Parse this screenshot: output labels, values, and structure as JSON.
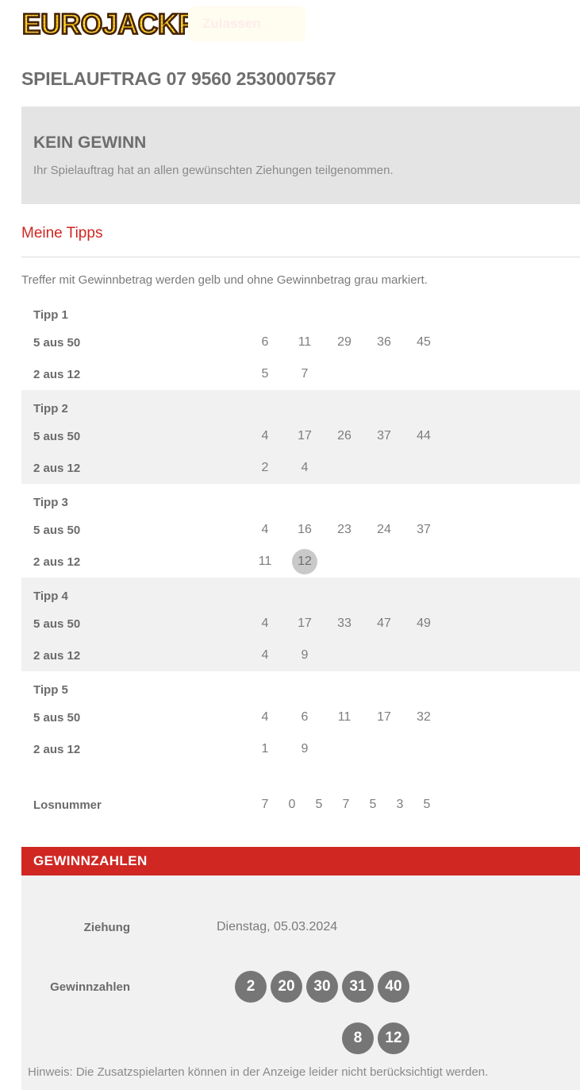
{
  "header": {
    "logo_text": "EUROJACKPOT",
    "notification_button_label": "Zulassen"
  },
  "page_title": "SPIELAUFTRAG 07 9560 2530007567",
  "result_box": {
    "title": "KEIN GEWINN",
    "message": "Ihr Spielauftrag hat an allen gewünschten Ziehungen teilgenommen."
  },
  "tips_section": {
    "heading": "Meine Tipps",
    "legend": "Treffer mit Gewinnbetrag werden gelb und ohne Gewinnbetrag grau markiert.",
    "main_row_label": "5 aus 50",
    "euro_row_label": "2 aus 12",
    "tips": [
      {
        "label": "Tipp 1",
        "main_numbers": [
          "6",
          "11",
          "29",
          "36",
          "45"
        ],
        "euro_numbers": [
          "5",
          "7"
        ],
        "euro_hit": null
      },
      {
        "label": "Tipp 2",
        "main_numbers": [
          "4",
          "17",
          "26",
          "37",
          "44"
        ],
        "euro_numbers": [
          "2",
          "4"
        ],
        "euro_hit": null
      },
      {
        "label": "Tipp 3",
        "main_numbers": [
          "4",
          "16",
          "23",
          "24",
          "37"
        ],
        "euro_numbers": [
          "11",
          "12"
        ],
        "euro_hit": "12"
      },
      {
        "label": "Tipp 4",
        "main_numbers": [
          "4",
          "17",
          "33",
          "47",
          "49"
        ],
        "euro_numbers": [
          "4",
          "9"
        ],
        "euro_hit": null
      },
      {
        "label": "Tipp 5",
        "main_numbers": [
          "4",
          "6",
          "11",
          "17",
          "32"
        ],
        "euro_numbers": [
          "1",
          "9"
        ],
        "euro_hit": null
      }
    ],
    "losnummer_label": "Losnummer",
    "losnummer_digits": [
      "7",
      "0",
      "5",
      "7",
      "5",
      "3",
      "5"
    ]
  },
  "winning_section": {
    "banner": "GEWINNZAHLEN",
    "ziehung_label": "Ziehung",
    "ziehung_value": "Dienstag, 05.03.2024",
    "gewinnzahlen_label": "Gewinnzahlen",
    "main_numbers": [
      "2",
      "20",
      "30",
      "31",
      "40"
    ],
    "euro_numbers": [
      "8",
      "12"
    ],
    "hinweis": "Hinweis: Die Zusatzspielarten können in der Anzeige leider nicht berücksichtigt werden."
  },
  "colors": {
    "accent_red": "#d02723",
    "heading_red": "#e5352b",
    "circle_gray": "#767676",
    "hit_gray": "#c9c9c9",
    "logo_yellow": "#fdc804",
    "logo_outline": "#42210e"
  }
}
